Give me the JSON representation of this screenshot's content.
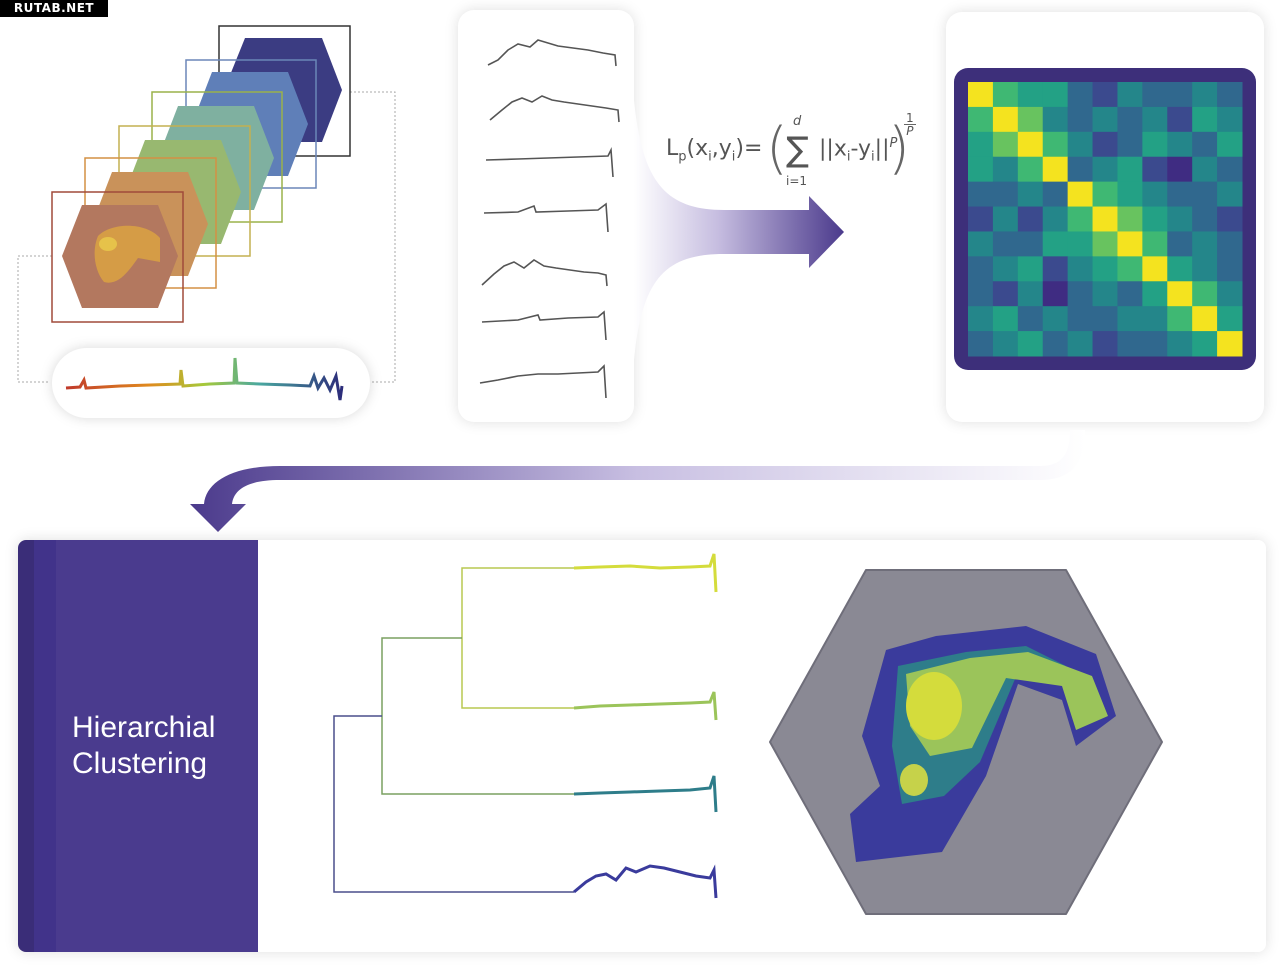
{
  "watermark": "RUTAB.NET",
  "formula": {
    "lhs": "L",
    "lhs_sub": "p",
    "args": "(x",
    "arg_sub_i": "i",
    "arg_mid": ",y",
    "arg_sub_i2": "i",
    "arg_end": ")=",
    "sum_top": "d",
    "sum_bottom": "i=1",
    "norm": "||x",
    "norm_sub": "i",
    "norm_mid": "-y",
    "norm_sub2": "i",
    "norm_end": "||",
    "norm_pow": "P",
    "exp_num": "1",
    "exp_den": "P"
  },
  "cluster_label_line1": "Hierarchial",
  "cluster_label_line2": "Clustering",
  "colors": {
    "accent_purple": "#4b3a8c",
    "matrix_bg": "#3d2f7a",
    "cluster_yellow": "#d4dc3c",
    "cluster_green": "#9bc45a",
    "cluster_teal": "#2e7d8a",
    "cluster_indigo": "#3a3b9c",
    "hex_gray": "#8a8994"
  },
  "similarity_matrix": [
    [
      9,
      6,
      5,
      5,
      3,
      2,
      4,
      3,
      3,
      4,
      3
    ],
    [
      6,
      9,
      7,
      4,
      3,
      4,
      3,
      4,
      2,
      5,
      4
    ],
    [
      5,
      7,
      9,
      6,
      4,
      2,
      3,
      5,
      4,
      3,
      5
    ],
    [
      5,
      4,
      6,
      9,
      3,
      4,
      5,
      2,
      1,
      4,
      3
    ],
    [
      3,
      3,
      4,
      3,
      9,
      6,
      5,
      4,
      3,
      3,
      4
    ],
    [
      2,
      4,
      2,
      4,
      6,
      9,
      7,
      5,
      4,
      3,
      2
    ],
    [
      4,
      3,
      3,
      5,
      5,
      7,
      9,
      6,
      3,
      4,
      3
    ],
    [
      3,
      4,
      5,
      2,
      4,
      5,
      6,
      9,
      5,
      4,
      3
    ],
    [
      3,
      2,
      4,
      1,
      3,
      4,
      3,
      5,
      9,
      6,
      4
    ],
    [
      4,
      5,
      3,
      4,
      3,
      3,
      4,
      4,
      6,
      9,
      5
    ],
    [
      3,
      4,
      5,
      3,
      4,
      2,
      3,
      3,
      4,
      5,
      9
    ]
  ]
}
